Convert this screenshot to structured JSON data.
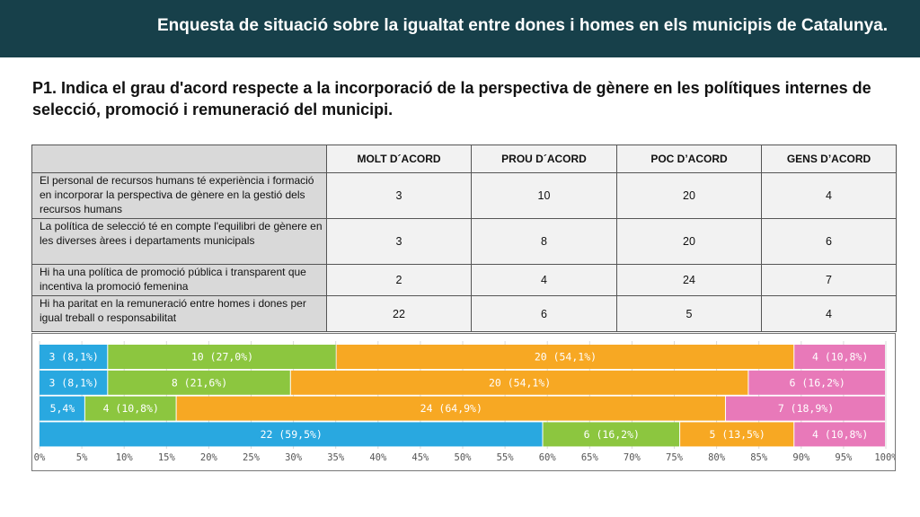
{
  "header": {
    "title": "Enquesta de situació sobre la  igualtat entre dones i homes en els municipis de Catalunya."
  },
  "question": "P1. Indica el grau d'acord respecte a la incorporació de la perspectiva de gènere en les polítiques internes de selecció, promoció i remuneració del municipi.",
  "table": {
    "headers": [
      "MOLT D´ACORD",
      "PROU D´ACORD",
      "POC D’ACORD",
      "GENS D’ACORD"
    ],
    "rows": [
      {
        "label": "El personal de recursos humans té experiència i formació en incorporar la perspectiva de gènere en la gestió dels recursos humans",
        "values": [
          "3",
          "10",
          "20",
          "4"
        ]
      },
      {
        "label": "La política de selecció té en compte l'equilibri de gènere en les diverses àrees i departaments municipals",
        "values": [
          "3",
          "8",
          "20",
          "6"
        ]
      },
      {
        "label": "Hi ha una política  de promoció pública i transparent que incentiva la promoció femenina",
        "values": [
          "2",
          "4",
          "24",
          "7"
        ]
      },
      {
        "label": "Hi ha paritat en la remuneració entre homes i dones per igual treball o responsabilitat",
        "values": [
          "22",
          "6",
          "5",
          "4"
        ]
      }
    ]
  },
  "chart_data": {
    "type": "bar",
    "orientation": "horizontal",
    "stacked": "percent",
    "xlim": [
      0,
      100
    ],
    "x_ticks": [
      "0%",
      "5%",
      "10%",
      "15%",
      "20%",
      "25%",
      "30%",
      "35%",
      "40%",
      "45%",
      "50%",
      "55%",
      "60%",
      "65%",
      "70%",
      "75%",
      "80%",
      "85%",
      "90%",
      "95%",
      "100%"
    ],
    "grid": true,
    "colors": [
      "#29a8e0",
      "#8cc63f",
      "#f7a823",
      "#e879b9"
    ],
    "bars": [
      {
        "values": [
          8.1,
          27.0,
          54.1,
          10.8
        ],
        "labels": [
          "3 (8,1%)",
          "10 (27,0%)",
          "20 (54,1%)",
          "4 (10,8%)"
        ]
      },
      {
        "values": [
          8.1,
          21.6,
          54.1,
          16.2
        ],
        "labels": [
          "3 (8,1%)",
          "8 (21,6%)",
          "20 (54,1%)",
          "6 (16,2%)"
        ]
      },
      {
        "values": [
          5.4,
          10.8,
          64.9,
          18.9
        ],
        "labels": [
          "5,4%",
          "4 (10,8%)",
          "24 (64,9%)",
          "7 (18,9%)"
        ]
      },
      {
        "values": [
          59.5,
          16.2,
          13.5,
          10.8
        ],
        "labels": [
          "22 (59,5%)",
          "6 (16,2%)",
          "5 (13,5%)",
          "4 (10,8%)"
        ]
      }
    ]
  }
}
